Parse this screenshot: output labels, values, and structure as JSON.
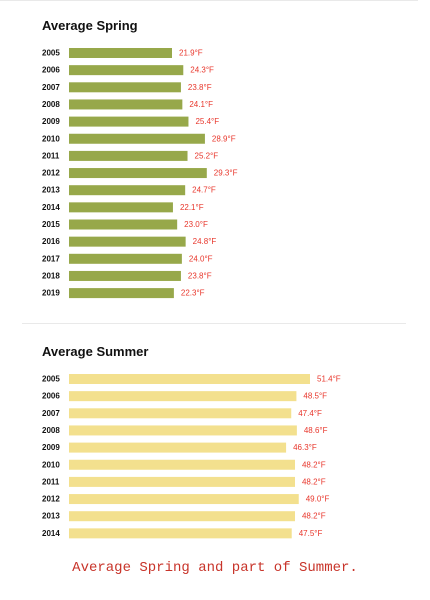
{
  "chart_data": [
    {
      "type": "bar",
      "orientation": "horizontal",
      "title": "Average Spring",
      "categories": [
        "2005",
        "2006",
        "2007",
        "2008",
        "2009",
        "2010",
        "2011",
        "2012",
        "2013",
        "2014",
        "2015",
        "2016",
        "2017",
        "2018",
        "2019"
      ],
      "values": [
        21.9,
        24.3,
        23.8,
        24.1,
        25.4,
        28.9,
        25.2,
        29.3,
        24.7,
        22.1,
        23.0,
        24.8,
        24.0,
        23.8,
        22.3
      ],
      "value_labels": [
        "21.9°F",
        "24.3°F",
        "23.8°F",
        "24.1°F",
        "25.4°F",
        "28.9°F",
        "25.2°F",
        "29.3°F",
        "24.7°F",
        "22.1°F",
        "23.0°F",
        "24.8°F",
        "24.0°F",
        "23.8°F",
        "22.3°F"
      ],
      "bar_color": "#97a84a",
      "label_color": "#e8362b",
      "grid": false
    },
    {
      "type": "bar",
      "orientation": "horizontal",
      "title": "Average Summer",
      "categories": [
        "2005",
        "2006",
        "2007",
        "2008",
        "2009",
        "2010",
        "2011",
        "2012",
        "2013",
        "2014"
      ],
      "values": [
        51.4,
        48.5,
        47.4,
        48.6,
        46.3,
        48.2,
        48.2,
        49.0,
        48.2,
        47.5
      ],
      "value_labels": [
        "51.4°F",
        "48.5°F",
        "47.4°F",
        "48.6°F",
        "46.3°F",
        "48.2°F",
        "48.2°F",
        "49.0°F",
        "48.2°F",
        "47.5°F"
      ],
      "bar_color": "#f3e08e",
      "label_color": "#e8362b",
      "grid": false
    }
  ],
  "caption": "Average Spring and part of Summer."
}
